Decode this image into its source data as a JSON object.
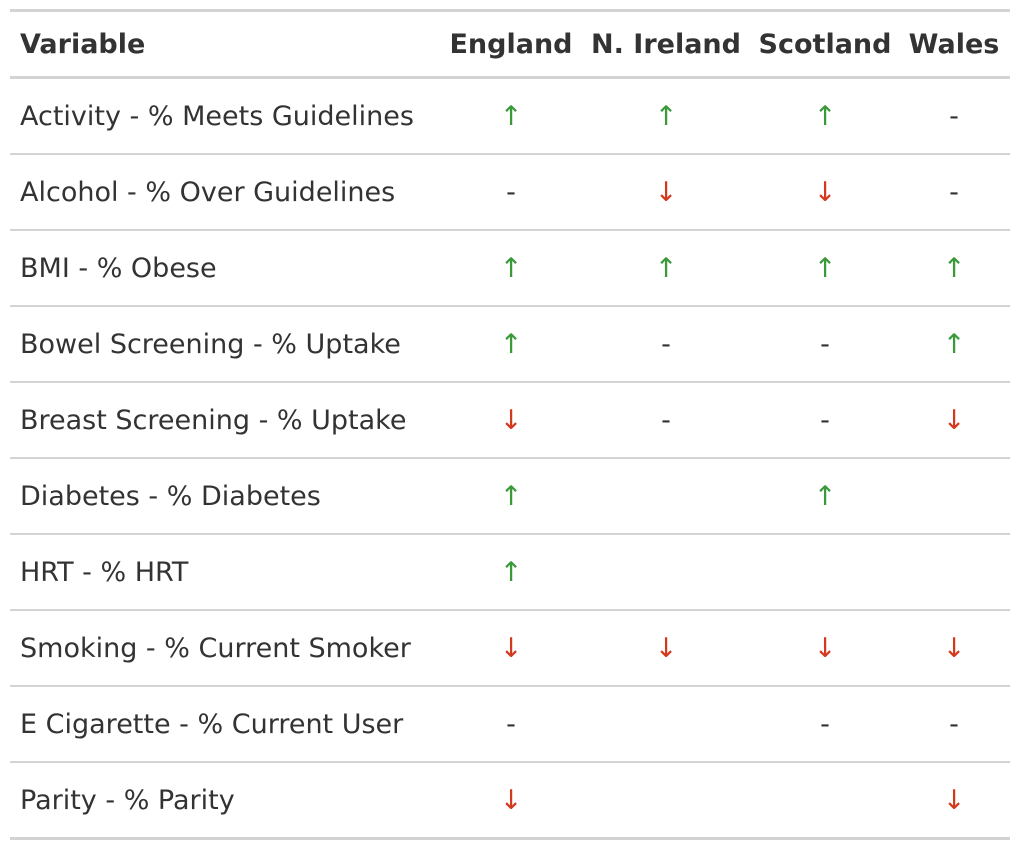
{
  "table": {
    "headers": [
      "Variable",
      "England",
      "N. Ireland",
      "Scotland",
      "Wales"
    ],
    "rows": [
      {
        "variable": "Activity - % Meets Guidelines",
        "values": [
          "↑",
          "↑",
          "↑",
          "-"
        ]
      },
      {
        "variable": "Alcohol - % Over Guidelines",
        "values": [
          "-",
          "↓",
          "↓",
          "-"
        ]
      },
      {
        "variable": "BMI - % Obese",
        "values": [
          "↑",
          "↑",
          "↑",
          "↑"
        ]
      },
      {
        "variable": "Bowel Screening - % Uptake",
        "values": [
          "↑",
          "-",
          "-",
          "↑"
        ]
      },
      {
        "variable": "Breast Screening - % Uptake",
        "values": [
          "↓",
          "-",
          "-",
          "↓"
        ]
      },
      {
        "variable": "Diabetes - % Diabetes",
        "values": [
          "↑",
          "",
          "↑",
          ""
        ]
      },
      {
        "variable": "HRT - % HRT",
        "values": [
          "↑",
          "",
          "",
          ""
        ]
      },
      {
        "variable": "Smoking - % Current Smoker",
        "values": [
          "↓",
          "↓",
          "↓",
          "↓"
        ]
      },
      {
        "variable": "E Cigarette - % Current User",
        "values": [
          "-",
          "",
          "-",
          "-"
        ]
      },
      {
        "variable": "Parity - % Parity",
        "values": [
          "↓",
          "",
          "",
          "↓"
        ]
      }
    ]
  },
  "colors": {
    "up": "#3a9a3a",
    "down": "#d4381e",
    "neutral": "#333333",
    "rule": "#d3d3d3"
  }
}
